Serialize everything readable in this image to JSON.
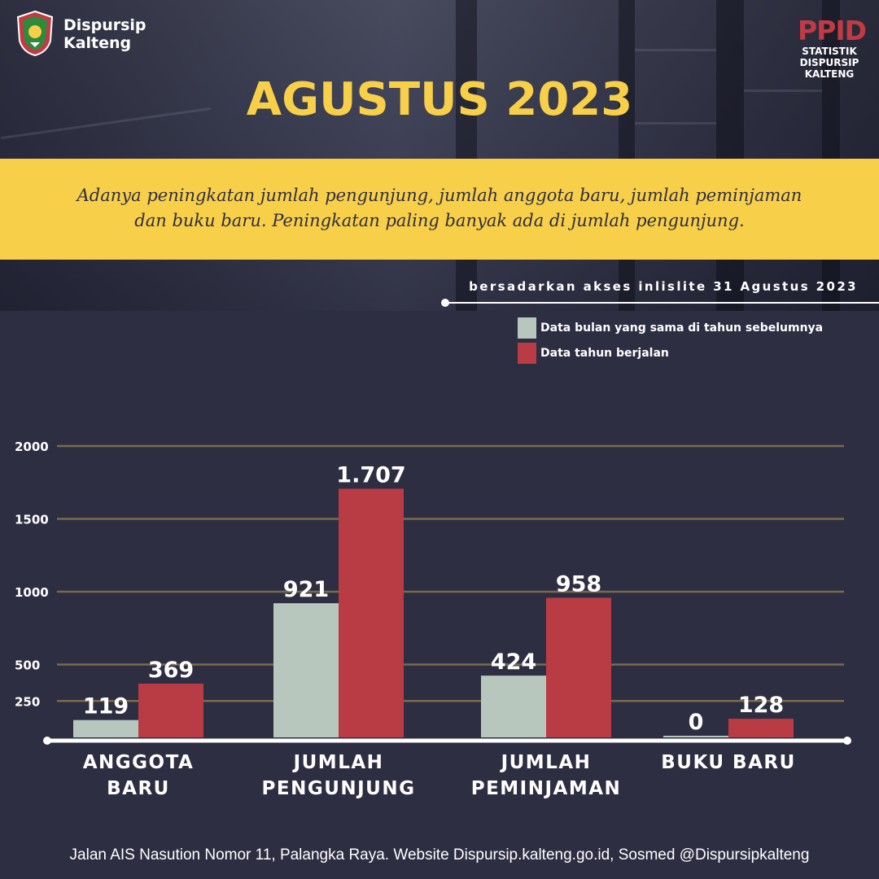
{
  "header": {
    "brand_line1": "Dispursip",
    "brand_line2": "Kalteng",
    "ppid_title": "PPID",
    "ppid_line1": "STATISTIK",
    "ppid_line2": "DISPURSIP",
    "ppid_line3": "KALTENG"
  },
  "title": "AGUSTUS 2023",
  "banner": {
    "line1": "Adanya peningkatan jumlah pengunjung, jumlah anggota baru, jumlah peminjaman",
    "line2": "dan buku baru. Peningkatan paling banyak ada di jumlah pengunjung."
  },
  "source_note": "bersadarkan akses inlislite 31 Agustus 2023",
  "footer": "Jalan AIS Nasution Nomor 11, Palangka Raya.  Website Dispursip.kalteng.go.id, Sosmed @Dispursipkalteng",
  "colors": {
    "background": "#2e2e42",
    "accent_yellow": "#f8cf49",
    "accent_red": "#c23a43",
    "series_previous": "#b7c7bd",
    "series_current": "#b93c44",
    "gridline": "#7b6a4a"
  },
  "chart_data": {
    "type": "bar",
    "categories": [
      [
        "ANGGOTA",
        "BARU"
      ],
      [
        "JUMLAH",
        "PENGUNJUNG"
      ],
      [
        "JUMLAH",
        "PEMINJAMAN"
      ],
      [
        "BUKU BARU"
      ]
    ],
    "series": [
      {
        "name": "Data bulan yang sama di tahun sebelumnya",
        "values": [
          119,
          921,
          424,
          0
        ],
        "labels": [
          "119",
          "921",
          "424",
          "0"
        ]
      },
      {
        "name": "Data tahun berjalan",
        "values": [
          369,
          1707,
          958,
          128
        ],
        "labels": [
          "369",
          "1.707",
          "958",
          "128"
        ]
      }
    ],
    "yticks": [
      250,
      500,
      1000,
      1500,
      2000
    ],
    "ylim": [
      0,
      2000
    ],
    "grid": true,
    "legend": "top-right",
    "title": "",
    "xlabel": "",
    "ylabel": ""
  }
}
